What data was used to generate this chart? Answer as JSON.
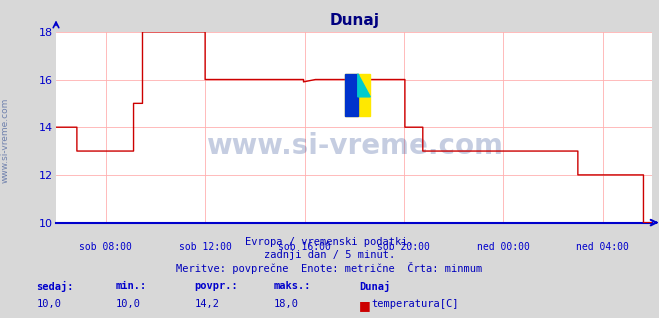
{
  "title": "Dunaj",
  "bg_color": "#d8d8d8",
  "plot_bg_color": "#ffffff",
  "grid_color": "#ffb0b0",
  "line_color": "#cc0000",
  "axis_color": "#0000cc",
  "title_color": "#000080",
  "label_color": "#0000cc",
  "text_color": "#0000bb",
  "watermark_side_color": "#1a3a8a",
  "watermark_center_color": "#1a3a8a",
  "ylim": [
    10,
    18
  ],
  "yticks": [
    10,
    12,
    14,
    16,
    18
  ],
  "xlabel_ticks": [
    "sob 08:00",
    "sob 12:00",
    "sob 16:00",
    "sob 20:00",
    "ned 00:00",
    "ned 04:00"
  ],
  "xlabel_pos_frac": [
    0.0833,
    0.25,
    0.4167,
    0.5833,
    0.75,
    0.9167
  ],
  "subtitle1": "Evropa / vremenski podatki.",
  "subtitle2": "zadnji dan / 5 minut.",
  "subtitle3": "Meritve: povprečne  Enote: metrične  Črta: minmum",
  "legend_labels": [
    "sedaj:",
    "min.:",
    "povpr.:",
    "maks.:",
    "Dunaj"
  ],
  "legend_vals": [
    "10,0",
    "10,0",
    "14,2",
    "18,0"
  ],
  "legend_series": "temperatura[C]",
  "legend_color": "#cc0000",
  "x_data": [
    0,
    0.035,
    0.035,
    0.13,
    0.13,
    0.145,
    0.145,
    0.25,
    0.25,
    0.415,
    0.415,
    0.435,
    0.435,
    0.585,
    0.585,
    0.615,
    0.615,
    0.75,
    0.75,
    0.875,
    0.875,
    0.965,
    0.965,
    0.985,
    0.985,
    1.0
  ],
  "y_data": [
    14,
    14,
    13,
    13,
    15,
    15,
    18,
    18,
    16,
    16,
    15.9,
    16,
    16,
    16,
    14,
    14,
    13,
    13,
    13,
    13,
    12,
    12,
    12,
    12,
    10,
    10
  ],
  "watermark": "www.si-vreme.com"
}
